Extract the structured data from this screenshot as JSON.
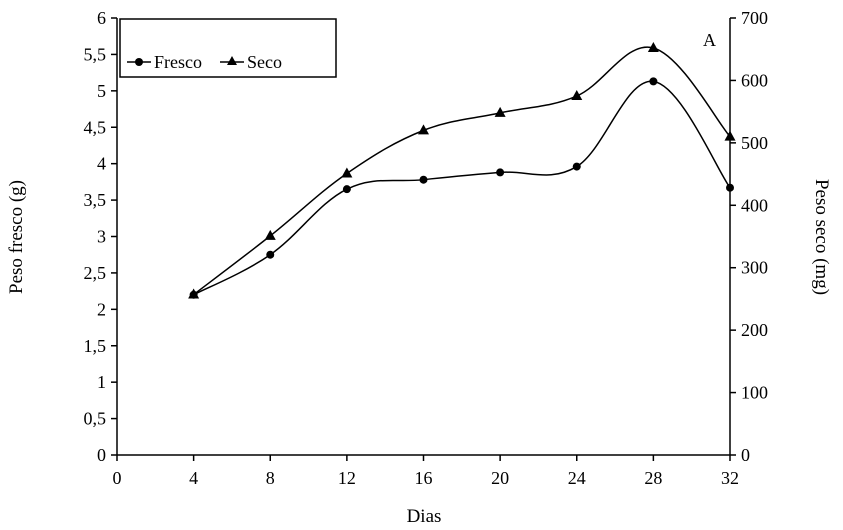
{
  "chart_data": {
    "type": "line",
    "panel_label": "A",
    "xlabel": "Dias",
    "ylabel_left": "Peso fresco (g)",
    "ylabel_right": "Peso seco (mg)",
    "xlim": [
      0,
      32
    ],
    "ylim_left": [
      0,
      6
    ],
    "ylim_right": [
      0,
      700
    ],
    "x_ticks": [
      "0",
      "4",
      "8",
      "12",
      "16",
      "20",
      "24",
      "28",
      "32"
    ],
    "y_left_ticks": [
      "0",
      "0,5",
      "1",
      "1,5",
      "2",
      "2,5",
      "3",
      "3,5",
      "4",
      "4,5",
      "5",
      "5,5",
      "6"
    ],
    "y_right_ticks": [
      "0",
      "100",
      "200",
      "300",
      "400",
      "500",
      "600",
      "700"
    ],
    "grid": false,
    "legend_position": "top-left",
    "series": [
      {
        "name": "Fresco",
        "axis": "left",
        "marker": "circle",
        "color": "#000000",
        "x": [
          4,
          8,
          12,
          16,
          20,
          24,
          28,
          32
        ],
        "values": [
          2.2,
          2.75,
          3.65,
          3.78,
          3.88,
          3.96,
          5.13,
          3.67
        ]
      },
      {
        "name": "Seco",
        "axis": "right",
        "marker": "triangle",
        "color": "#000000",
        "x": [
          4,
          8,
          12,
          16,
          20,
          24,
          28,
          32
        ],
        "values": [
          257,
          351,
          451,
          520,
          548,
          575,
          652,
          510
        ]
      }
    ]
  }
}
